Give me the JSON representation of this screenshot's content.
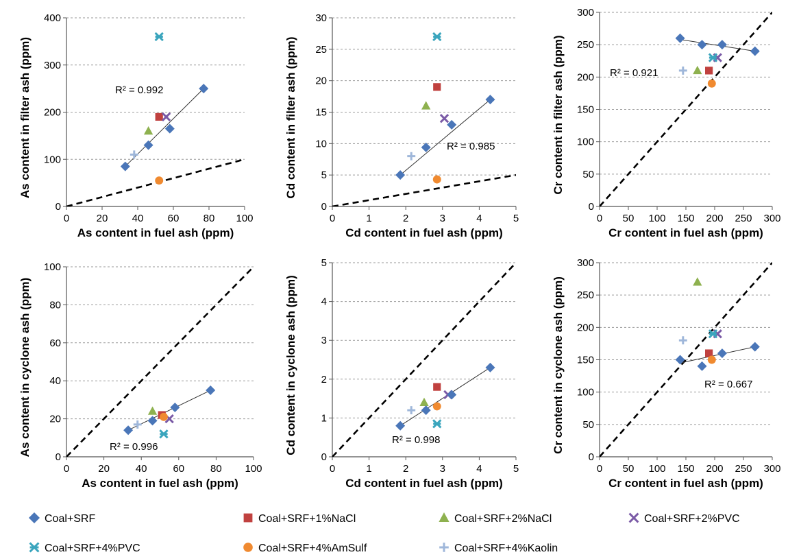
{
  "chart_data": [
    {
      "id": "as-filter",
      "type": "scatter",
      "xlabel": "As content in fuel ash (ppm)",
      "ylabel": "As content in filter ash (ppm)",
      "xlim": [
        0,
        100
      ],
      "ylim": [
        0,
        400
      ],
      "xticks": [
        0,
        20,
        40,
        60,
        80,
        100
      ],
      "yticks": [
        0,
        100,
        200,
        300,
        400
      ],
      "r2_text": "R² = 0.992",
      "series": [
        {
          "name": "Coal+SRF",
          "points": [
            [
              33,
              85
            ],
            [
              46,
              130
            ],
            [
              58,
              165
            ],
            [
              77,
              250
            ]
          ]
        },
        {
          "name": "Coal+SRF+1%NaCl",
          "points": [
            [
              52,
              190
            ]
          ]
        },
        {
          "name": "Coal+SRF+2%NaCl",
          "points": [
            [
              46,
              160
            ]
          ]
        },
        {
          "name": "Coal+SRF+2%PVC",
          "points": [
            [
              56,
              190
            ]
          ]
        },
        {
          "name": "Coal+SRF+4%PVC",
          "points": [
            [
              52,
              360
            ]
          ]
        },
        {
          "name": "Coal+SRF+4%AmSulf",
          "points": [
            [
              52,
              55
            ]
          ]
        },
        {
          "name": "Coal+SRF+4%Kaolin",
          "points": [
            [
              38,
              110
            ]
          ]
        }
      ],
      "trendline": [
        [
          33,
          85
        ],
        [
          77,
          250
        ]
      ],
      "reference_line": [
        [
          0,
          0
        ],
        [
          100,
          100
        ]
      ]
    },
    {
      "id": "cd-filter",
      "type": "scatter",
      "xlabel": "Cd content in fuel ash (ppm)",
      "ylabel": "Cd content in filter ash (ppm)",
      "xlim": [
        0,
        5
      ],
      "ylim": [
        0,
        30
      ],
      "xticks": [
        0,
        1,
        2,
        3,
        4,
        5
      ],
      "yticks": [
        0,
        5,
        10,
        15,
        20,
        25,
        30
      ],
      "r2_text": "R² = 0.985",
      "series": [
        {
          "name": "Coal+SRF",
          "points": [
            [
              1.85,
              5
            ],
            [
              2.55,
              9.4
            ],
            [
              3.25,
              13
            ],
            [
              4.3,
              17
            ]
          ]
        },
        {
          "name": "Coal+SRF+1%NaCl",
          "points": [
            [
              2.85,
              19
            ]
          ]
        },
        {
          "name": "Coal+SRF+2%NaCl",
          "points": [
            [
              2.55,
              16
            ]
          ]
        },
        {
          "name": "Coal+SRF+2%PVC",
          "points": [
            [
              3.05,
              14
            ]
          ]
        },
        {
          "name": "Coal+SRF+4%PVC",
          "points": [
            [
              2.85,
              27
            ]
          ]
        },
        {
          "name": "Coal+SRF+4%AmSulf",
          "points": [
            [
              2.85,
              4.3
            ]
          ]
        },
        {
          "name": "Coal+SRF+4%Kaolin",
          "points": [
            [
              2.15,
              8
            ]
          ]
        }
      ],
      "trendline": [
        [
          1.85,
          5
        ],
        [
          4.3,
          17
        ]
      ],
      "reference_line": [
        [
          0,
          0
        ],
        [
          5,
          5
        ]
      ]
    },
    {
      "id": "cr-filter",
      "type": "scatter",
      "xlabel": "Cr content in fuel ash (ppm)",
      "ylabel": "Cr  content in filter ash (ppm)",
      "xlim": [
        0,
        300
      ],
      "ylim": [
        0,
        300
      ],
      "xticks": [
        0,
        50,
        100,
        150,
        200,
        250,
        300
      ],
      "yticks": [
        0,
        50,
        100,
        150,
        200,
        250,
        300
      ],
      "r2_text": "R² = 0.921",
      "series": [
        {
          "name": "Coal+SRF",
          "points": [
            [
              140,
              260
            ],
            [
              178,
              250
            ],
            [
              213,
              250
            ],
            [
              270,
              240
            ]
          ]
        },
        {
          "name": "Coal+SRF+1%NaCl",
          "points": [
            [
              190,
              210
            ]
          ]
        },
        {
          "name": "Coal+SRF+2%NaCl",
          "points": [
            [
              170,
              210
            ]
          ]
        },
        {
          "name": "Coal+SRF+2%PVC",
          "points": [
            [
              205,
              230
            ]
          ]
        },
        {
          "name": "Coal+SRF+4%PVC",
          "points": [
            [
              197,
              230
            ]
          ]
        },
        {
          "name": "Coal+SRF+4%AmSulf",
          "points": [
            [
              195,
              190
            ]
          ]
        },
        {
          "name": "Coal+SRF+4%Kaolin",
          "points": [
            [
              145,
              210
            ]
          ]
        }
      ],
      "trendline": [
        [
          140,
          258
        ],
        [
          270,
          240
        ]
      ],
      "reference_line": [
        [
          0,
          0
        ],
        [
          300,
          300
        ]
      ]
    },
    {
      "id": "as-cyclone",
      "type": "scatter",
      "xlabel": "As content in fuel ash (ppm)",
      "ylabel": "As content in cyclone ash (ppm)",
      "xlim": [
        0,
        100
      ],
      "ylim": [
        0,
        100
      ],
      "xticks": [
        0,
        20,
        40,
        60,
        80,
        100
      ],
      "yticks": [
        0,
        20,
        40,
        60,
        80,
        100
      ],
      "r2_text": "R² = 0.996",
      "series": [
        {
          "name": "Coal+SRF",
          "points": [
            [
              33,
              14
            ],
            [
              46,
              19
            ],
            [
              58,
              26
            ],
            [
              77,
              35
            ]
          ]
        },
        {
          "name": "Coal+SRF+1%NaCl",
          "points": [
            [
              51,
              22
            ]
          ]
        },
        {
          "name": "Coal+SRF+2%NaCl",
          "points": [
            [
              46,
              24
            ]
          ]
        },
        {
          "name": "Coal+SRF+2%PVC",
          "points": [
            [
              55,
              20
            ]
          ]
        },
        {
          "name": "Coal+SRF+4%PVC",
          "points": [
            [
              52,
              12
            ]
          ]
        },
        {
          "name": "Coal+SRF+4%AmSulf",
          "points": [
            [
              52,
              21
            ]
          ]
        },
        {
          "name": "Coal+SRF+4%Kaolin",
          "points": [
            [
              38,
              17
            ]
          ]
        }
      ],
      "trendline": [
        [
          33,
          14
        ],
        [
          77,
          35
        ]
      ],
      "reference_line": [
        [
          0,
          0
        ],
        [
          100,
          100
        ]
      ]
    },
    {
      "id": "cd-cyclone",
      "type": "scatter",
      "xlabel": "Cd content in fuel ash (ppm)",
      "ylabel": "Cd content in cyclone ash (ppm)",
      "xlim": [
        0,
        5
      ],
      "ylim": [
        0,
        5
      ],
      "xticks": [
        0,
        1,
        2,
        3,
        4,
        5
      ],
      "yticks": [
        0,
        1,
        2,
        3,
        4,
        5
      ],
      "r2_text": "R² = 0.998",
      "series": [
        {
          "name": "Coal+SRF",
          "points": [
            [
              1.85,
              0.8
            ],
            [
              2.55,
              1.2
            ],
            [
              3.25,
              1.6
            ],
            [
              4.3,
              2.3
            ]
          ]
        },
        {
          "name": "Coal+SRF+1%NaCl",
          "points": [
            [
              2.85,
              1.8
            ]
          ]
        },
        {
          "name": "Coal+SRF+2%NaCl",
          "points": [
            [
              2.5,
              1.4
            ]
          ]
        },
        {
          "name": "Coal+SRF+2%PVC",
          "points": [
            [
              3.15,
              1.6
            ]
          ]
        },
        {
          "name": "Coal+SRF+4%PVC",
          "points": [
            [
              2.85,
              0.85
            ]
          ]
        },
        {
          "name": "Coal+SRF+4%AmSulf",
          "points": [
            [
              2.85,
              1.3
            ]
          ]
        },
        {
          "name": "Coal+SRF+4%Kaolin",
          "points": [
            [
              2.15,
              1.2
            ]
          ]
        }
      ],
      "trendline": [
        [
          1.85,
          0.8
        ],
        [
          4.3,
          2.3
        ]
      ],
      "reference_line": [
        [
          0,
          0
        ],
        [
          5,
          5
        ]
      ]
    },
    {
      "id": "cr-cyclone",
      "type": "scatter",
      "xlabel": "Cr content in fuel ash (ppm)",
      "ylabel": "Cr content in cyclone ash (ppm)",
      "xlim": [
        0,
        300
      ],
      "ylim": [
        0,
        300
      ],
      "xticks": [
        0,
        50,
        100,
        150,
        200,
        250,
        300
      ],
      "yticks": [
        0,
        50,
        100,
        150,
        200,
        250,
        300
      ],
      "r2_text": "R² = 0.667",
      "series": [
        {
          "name": "Coal+SRF",
          "points": [
            [
              140,
              150
            ],
            [
              178,
              140
            ],
            [
              213,
              160
            ],
            [
              270,
              170
            ]
          ]
        },
        {
          "name": "Coal+SRF+1%NaCl",
          "points": [
            [
              190,
              160
            ]
          ]
        },
        {
          "name": "Coal+SRF+2%NaCl",
          "points": [
            [
              170,
              270
            ]
          ]
        },
        {
          "name": "Coal+SRF+2%PVC",
          "points": [
            [
              205,
              190
            ]
          ]
        },
        {
          "name": "Coal+SRF+4%PVC",
          "points": [
            [
              197,
              190
            ]
          ]
        },
        {
          "name": "Coal+SRF+4%AmSulf",
          "points": [
            [
              195,
              150
            ]
          ]
        },
        {
          "name": "Coal+SRF+4%Kaolin",
          "points": [
            [
              145,
              180
            ]
          ]
        }
      ],
      "trendline": [
        [
          140,
          145
        ],
        [
          270,
          170
        ]
      ],
      "reference_line": [
        [
          0,
          0
        ],
        [
          300,
          300
        ]
      ]
    }
  ],
  "legend": [
    {
      "name": "Coal+SRF",
      "marker": "diamond",
      "color": "#4a76b8"
    },
    {
      "name": "Coal+SRF+1%NaCl",
      "marker": "square",
      "color": "#c0413f"
    },
    {
      "name": "Coal+SRF+2%NaCl",
      "marker": "triangle",
      "color": "#8eb14f"
    },
    {
      "name": "Coal+SRF+2%PVC",
      "marker": "x",
      "color": "#7a5aa6"
    },
    {
      "name": "Coal+SRF+4%PVC",
      "marker": "star",
      "color": "#3aa5bd"
    },
    {
      "name": "Coal+SRF+4%AmSulf",
      "marker": "circle",
      "color": "#f08a30"
    },
    {
      "name": "Coal+SRF+4%Kaolin",
      "marker": "plus",
      "color": "#9fb7da"
    }
  ]
}
